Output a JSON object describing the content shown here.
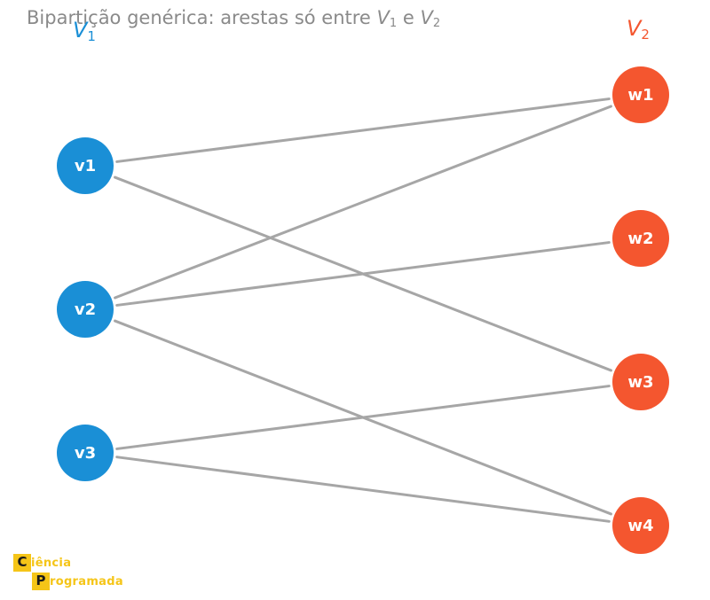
{
  "title": {
    "text": "Bipartição genérica: arestas só entre ",
    "v1_letter": "V",
    "v1_sub": "1",
    "connector": " e ",
    "v2_letter": "V",
    "v2_sub": "2"
  },
  "partitions": {
    "left": {
      "letter": "V",
      "sub": "1",
      "color": "#1a8fd6"
    },
    "right": {
      "letter": "V",
      "sub": "2",
      "color": "#f4562f"
    }
  },
  "nodes": {
    "left": [
      "v1",
      "v2",
      "v3"
    ],
    "right": [
      "w1",
      "w2",
      "w3",
      "w4"
    ]
  },
  "edges": [
    [
      "v1",
      "w1"
    ],
    [
      "v1",
      "w3"
    ],
    [
      "v2",
      "w1"
    ],
    [
      "v2",
      "w2"
    ],
    [
      "v2",
      "w4"
    ],
    [
      "v3",
      "w3"
    ],
    [
      "v3",
      "w4"
    ]
  ],
  "colors": {
    "left_node": "#1a8fd6",
    "right_node": "#f4562f",
    "edge": "#a6a6a6",
    "title": "#8a8a8a",
    "logo": "#f5c518"
  },
  "logo": {
    "line1_initial": "C",
    "line1_rest": "iência",
    "line2_initial": "P",
    "line2_rest": "rogramada"
  }
}
